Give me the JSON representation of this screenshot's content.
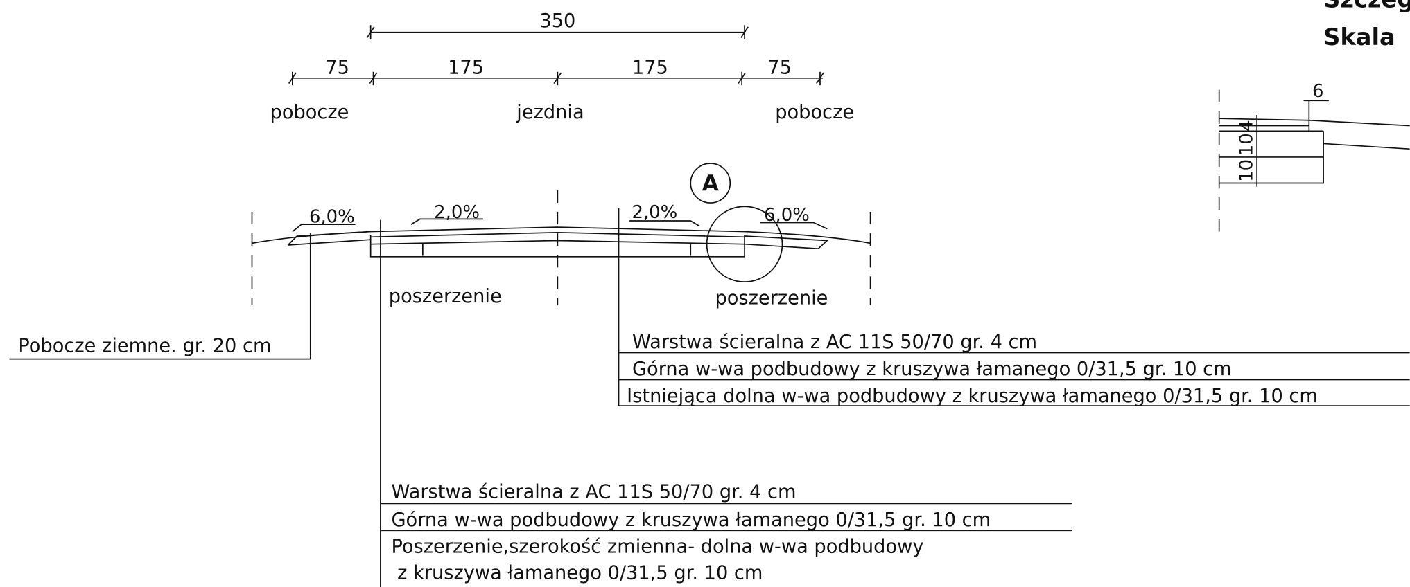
{
  "dimensions": {
    "total": "350",
    "parts": [
      "75",
      "175",
      "175",
      "75"
    ]
  },
  "zones": [
    "pobocze",
    "jezdnia",
    "pobocze"
  ],
  "detail_marker": "A",
  "slopes": [
    "6,0%",
    "2,0%",
    "2,0%",
    "6,0%"
  ],
  "widening_labels": [
    "poszerzenie",
    "poszerzenie"
  ],
  "shoulder_note": "Pobocze ziemne. gr. 20 cm",
  "layers_roadway": [
    "Warstwa ścieralna z AC 11S 50/70 gr. 4 cm",
    "Górna w-wa podbudowy z kruszywa łamanego 0/31,5 gr. 10 cm",
    "Istniejąca dolna w-wa podbudowy z kruszywa łamanego 0/31,5 gr. 10 cm"
  ],
  "layers_widening": [
    "Warstwa ścieralna z AC 11S 50/70 gr. 4 cm",
    "Górna w-wa podbudowy z kruszywa łamanego 0/31,5 gr. 10 cm",
    "Poszerzenie,szerokość zmienna- dolna w-wa podbudowy",
    " z kruszywa łamanego 0/31,5 gr. 10 cm"
  ],
  "detail": {
    "title": "Szczeg",
    "scale": "Skala",
    "width": "6",
    "thicknesses": [
      "10",
      "10",
      "4"
    ]
  }
}
